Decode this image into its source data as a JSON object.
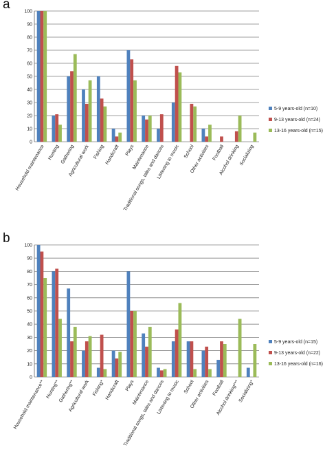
{
  "chart_data": [
    {
      "panel": "a",
      "type": "bar",
      "ylim": [
        0,
        100
      ],
      "yticks": [
        "0",
        "10",
        "20",
        "30",
        "40",
        "50",
        "60",
        "70",
        "80",
        "90",
        "100"
      ],
      "grid": true,
      "legend_position": "right",
      "categories": [
        "Household maintenance",
        "Hunting",
        "Gathering",
        "Agricultural work",
        "Fishing",
        "Handicraft",
        "Plays",
        "Maintenance",
        "Traditional songs, tales and dances",
        "Listening to music",
        "School",
        "Other activities",
        "Football",
        "Alcohol drinking",
        "Socializing"
      ],
      "series": [
        {
          "name": "5-9 years-old (n=10)",
          "color": "#4F81BD",
          "values": [
            100,
            20,
            50,
            40,
            50,
            10,
            70,
            20,
            10,
            30,
            0,
            10,
            0,
            0,
            0
          ]
        },
        {
          "name": "9-13 years-old (n=24)",
          "color": "#C0504D",
          "values": [
            100,
            21,
            54,
            29,
            33,
            4,
            63,
            17,
            21,
            58,
            29,
            4,
            4,
            8,
            0
          ]
        },
        {
          "name": "13-16 years-old (n=15)",
          "color": "#9BBB59",
          "values": [
            100,
            13,
            67,
            47,
            27,
            7,
            47,
            20,
            0,
            53,
            27,
            13,
            0,
            20,
            7
          ]
        }
      ]
    },
    {
      "panel": "b",
      "type": "bar",
      "ylim": [
        0,
        100
      ],
      "yticks": [
        "0",
        "10",
        "20",
        "30",
        "40",
        "50",
        "60",
        "70",
        "80",
        "90",
        "100"
      ],
      "grid": true,
      "legend_position": "right",
      "categories": [
        "Household maintenance**",
        "Hunting**",
        "Gathering**",
        "Agricultural work",
        "Fishing*",
        "Handicraft",
        "Plays",
        "Maintenance",
        "Traditional songs, tales and dances",
        "Listening to music",
        "School",
        "Other activities",
        "Football",
        "Alcohol drinking***",
        "Socializing*"
      ],
      "series": [
        {
          "name": "5-9 years-old (n=15)",
          "color": "#4F81BD",
          "values": [
            100,
            80,
            67,
            20,
            7,
            20,
            80,
            33,
            7,
            27,
            27,
            20,
            13,
            0,
            7
          ]
        },
        {
          "name": "9-13 years-old (n=22)",
          "color": "#C0504D",
          "values": [
            95,
            82,
            27,
            27,
            32,
            14,
            50,
            23,
            5,
            36,
            27,
            23,
            27,
            0,
            0
          ]
        },
        {
          "name": "13-16 years-old (n=16)",
          "color": "#9BBB59",
          "values": [
            75,
            44,
            38,
            31,
            6,
            19,
            50,
            38,
            6,
            56,
            6,
            6,
            25,
            44,
            25
          ]
        }
      ]
    }
  ],
  "panels": [
    {
      "letter": "a"
    },
    {
      "letter": "b"
    }
  ],
  "colors": {
    "grid": "#7f7f7f",
    "axis": "#7f7f7f",
    "background": "#ffffff"
  }
}
